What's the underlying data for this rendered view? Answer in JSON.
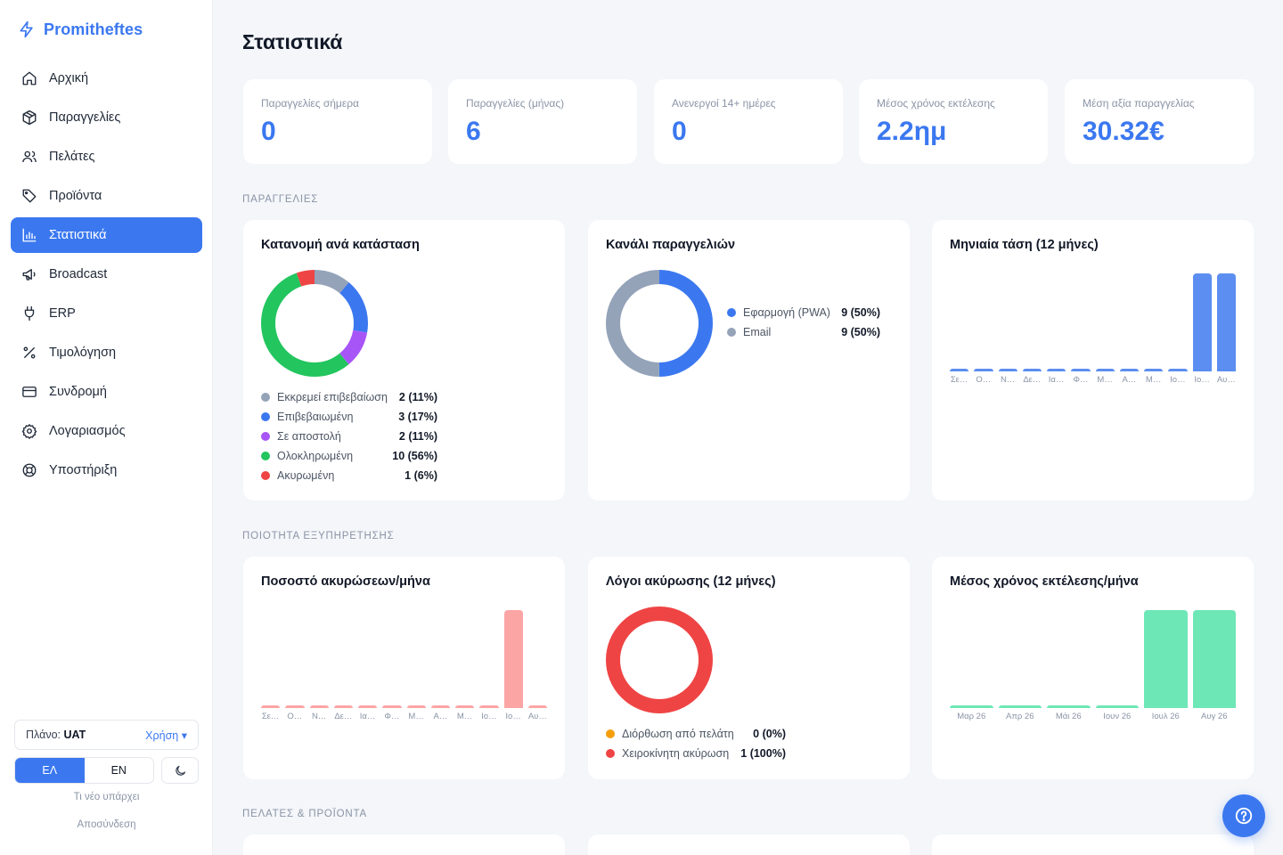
{
  "brand": {
    "name": "Promitheftes"
  },
  "sidebar": {
    "items": [
      {
        "label": "Αρχική",
        "icon": "home-icon",
        "active": false
      },
      {
        "label": "Παραγγελίες",
        "icon": "box-icon",
        "active": false
      },
      {
        "label": "Πελάτες",
        "icon": "users-icon",
        "active": false
      },
      {
        "label": "Προϊόντα",
        "icon": "tag-icon",
        "active": false
      },
      {
        "label": "Στατιστικά",
        "icon": "bar-chart-icon",
        "active": true
      },
      {
        "label": "Broadcast",
        "icon": "megaphone-icon",
        "active": false
      },
      {
        "label": "ERP",
        "icon": "plug-icon",
        "active": false
      },
      {
        "label": "Τιμολόγηση",
        "icon": "percent-icon",
        "active": false
      },
      {
        "label": "Συνδρομή",
        "icon": "credit-card-icon",
        "active": false
      },
      {
        "label": "Λογαριασμός",
        "icon": "gear-icon",
        "active": false
      },
      {
        "label": "Υποστήριξη",
        "icon": "lifebuoy-icon",
        "active": false
      }
    ],
    "plan_label": "Πλάνο:",
    "plan_value": "UAT",
    "usage_label": "Χρήση ▾",
    "lang_el": "ΕΛ",
    "lang_en": "EN",
    "whats_new": "Τι νέο υπάρχει",
    "logout": "Αποσύνδεση"
  },
  "page": {
    "title": "Στατιστικά"
  },
  "kpis": [
    {
      "label": "Παραγγελίες σήμερα",
      "value": "0"
    },
    {
      "label": "Παραγγελίες (μήνας)",
      "value": "6"
    },
    {
      "label": "Ανενεργοί 14+ ημέρες",
      "value": "0"
    },
    {
      "label": "Μέσος χρόνος εκτέλεσης",
      "value": "2.2ημ"
    },
    {
      "label": "Μέση αξία παραγγελίας",
      "value": "30.32€"
    }
  ],
  "sections": {
    "orders": "ΠΑΡΑΓΓΕΛΙΕΣ",
    "quality": "ΠΟΙΟΤΗΤΑ ΕΞΥΠΗΡΕΤΗΣΗΣ",
    "customers": "ΠΕΛΑΤΕΣ & ΠΡΟΪΟΝΤΑ"
  },
  "colors": {
    "accent": "#3b78f0",
    "gray": "#94a3b8",
    "purple": "#a855f7",
    "green": "#22c55e",
    "red": "#ef4444",
    "orange": "#f59e0b",
    "salmon": "#fca5a5",
    "mint": "#6ee7b7",
    "blue_bar": "#5b8ef0"
  },
  "chart_data": [
    {
      "type": "pie",
      "title": "Κατανομή ανά κατάσταση",
      "slices": [
        {
          "label": "Εκκρεμεί επιβεβαίωση",
          "value": 2,
          "display": "2 (11%)",
          "color": "#94a3b8"
        },
        {
          "label": "Επιβεβαιωμένη",
          "value": 3,
          "display": "3 (17%)",
          "color": "#3b78f0"
        },
        {
          "label": "Σε αποστολή",
          "value": 2,
          "display": "2 (11%)",
          "color": "#a855f7"
        },
        {
          "label": "Ολοκληρωμένη",
          "value": 10,
          "display": "10 (56%)",
          "color": "#22c55e"
        },
        {
          "label": "Ακυρωμένη",
          "value": 1,
          "display": "1 (6%)",
          "color": "#ef4444"
        }
      ]
    },
    {
      "type": "pie",
      "title": "Κανάλι παραγγελιών",
      "slices": [
        {
          "label": "Εφαρμογή (PWA)",
          "value": 9,
          "display": "9 (50%)",
          "color": "#3b78f0"
        },
        {
          "label": "Email",
          "value": 9,
          "display": "9 (50%)",
          "color": "#94a3b8"
        }
      ]
    },
    {
      "type": "bar",
      "title": "Μηνιαία τάση (12 μήνες)",
      "categories": [
        "Σε…",
        "Ο…",
        "Ν…",
        "Δε…",
        "Ια…",
        "Φ…",
        "Μ…",
        "Α…",
        "Μ…",
        "Ιο…",
        "Ιο…",
        "Αυ…"
      ],
      "values": [
        0,
        0,
        0,
        0,
        0,
        0,
        0,
        0,
        0,
        0,
        9,
        9
      ],
      "ylim": [
        0,
        9
      ],
      "color": "#5b8ef0"
    },
    {
      "type": "bar",
      "title": "Ποσοστό ακυρώσεων/μήνα",
      "categories": [
        "Σε…",
        "Ο…",
        "Ν…",
        "Δε…",
        "Ια…",
        "Φ…",
        "Μ…",
        "Α…",
        "Μ…",
        "Ιο…",
        "Ιο…",
        "Αυ…"
      ],
      "values": [
        0,
        0,
        0,
        0,
        0,
        0,
        0,
        0,
        0,
        0,
        1,
        0
      ],
      "ylim": [
        0,
        1
      ],
      "color": "#fca5a5"
    },
    {
      "type": "pie",
      "title": "Λόγοι ακύρωσης (12 μήνες)",
      "slices": [
        {
          "label": "Διόρθωση από πελάτη",
          "value": 0,
          "display": "0 (0%)",
          "color": "#f59e0b"
        },
        {
          "label": "Χειροκίνητη ακύρωση",
          "value": 1,
          "display": "1 (100%)",
          "color": "#ef4444"
        }
      ]
    },
    {
      "type": "bar",
      "title": "Μέσος χρόνος εκτέλεσης/μήνα",
      "categories": [
        "Μαρ 26",
        "Απρ 26",
        "Μάι 26",
        "Ιουν 26",
        "Ιουλ 26",
        "Αυγ 26"
      ],
      "values": [
        0,
        0,
        0,
        0,
        1,
        1
      ],
      "ylim": [
        0,
        1
      ],
      "color": "#6ee7b7"
    }
  ]
}
